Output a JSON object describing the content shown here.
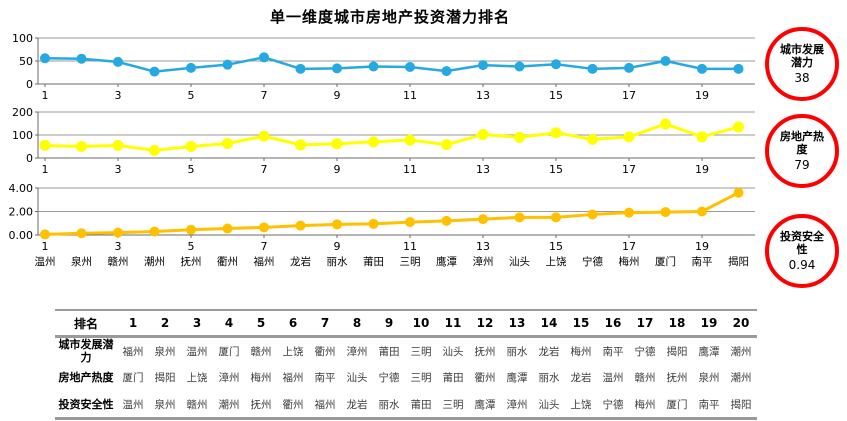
{
  "title": "单一维度城市房地产投资潜力排名",
  "colors": {
    "blue_series": "#25A9E0",
    "yellow_series": "#FFFF00",
    "orange_series": "#FFC000",
    "badge_ring": "#FF0000",
    "gridline": "#9a9a9a",
    "axis": "#6b6b6b"
  },
  "chart_data": [
    {
      "type": "line",
      "name": "城市发展潜力",
      "color": "#25A9E0",
      "categories": [
        1,
        2,
        3,
        4,
        5,
        6,
        7,
        8,
        9,
        10,
        11,
        12,
        13,
        14,
        15,
        16,
        17,
        18,
        19,
        20
      ],
      "x_tick_labels": [
        "1",
        "3",
        "5",
        "7",
        "9",
        "11",
        "13",
        "15",
        "17",
        "19"
      ],
      "values": [
        56,
        55,
        48,
        27,
        35,
        42,
        58,
        33,
        34,
        38,
        37,
        28,
        41,
        38,
        43,
        33,
        35,
        50,
        33,
        33
      ],
      "ylim": [
        0,
        100
      ],
      "yticks": [
        0,
        50,
        100
      ],
      "ytick_labels": [
        "0",
        "50",
        "100"
      ],
      "grid": true,
      "legend": "none"
    },
    {
      "type": "line",
      "name": "房地产热度",
      "color": "#FFFF00",
      "categories": [
        1,
        2,
        3,
        4,
        5,
        6,
        7,
        8,
        9,
        10,
        11,
        12,
        13,
        14,
        15,
        16,
        17,
        18,
        19,
        20
      ],
      "x_tick_labels": [
        "1",
        "3",
        "5",
        "7",
        "9",
        "11",
        "13",
        "15",
        "17",
        "19"
      ],
      "values": [
        55,
        50,
        55,
        33,
        50,
        63,
        95,
        57,
        62,
        70,
        78,
        58,
        102,
        90,
        110,
        81,
        92,
        148,
        92,
        135
      ],
      "ylim": [
        0,
        200
      ],
      "yticks": [
        0,
        100,
        200
      ],
      "ytick_labels": [
        "0",
        "100",
        "200"
      ],
      "grid": true,
      "legend": "none"
    },
    {
      "type": "line",
      "name": "投资安全性",
      "color": "#FFC000",
      "categories": [
        1,
        2,
        3,
        4,
        5,
        6,
        7,
        8,
        9,
        10,
        11,
        12,
        13,
        14,
        15,
        16,
        17,
        18,
        19,
        20
      ],
      "x_tick_labels": [
        "1",
        "3",
        "5",
        "7",
        "9",
        "11",
        "13",
        "15",
        "17",
        "19"
      ],
      "city_labels": [
        "温州",
        "泉州",
        "赣州",
        "潮州",
        "抚州",
        "衢州",
        "福州",
        "龙岩",
        "丽水",
        "莆田",
        "三明",
        "鹰潭",
        "漳州",
        "汕头",
        "上饶",
        "宁德",
        "梅州",
        "厦门",
        "南平",
        "揭阳"
      ],
      "values": [
        0.05,
        0.15,
        0.2,
        0.3,
        0.45,
        0.55,
        0.65,
        0.8,
        0.9,
        0.95,
        1.1,
        1.2,
        1.35,
        1.5,
        1.5,
        1.75,
        1.9,
        1.95,
        2.0,
        3.6
      ],
      "ylim": [
        0,
        4
      ],
      "yticks": [
        0,
        2,
        4
      ],
      "ytick_labels": [
        "0.00",
        "2.00",
        "4.00"
      ],
      "grid": true,
      "legend": "none"
    }
  ],
  "badges": [
    {
      "label": "城市发展潜力",
      "value": "38"
    },
    {
      "label": "房地产热度",
      "value": "79"
    },
    {
      "label": "投资安全性",
      "value": "0.94"
    }
  ],
  "table": {
    "header": [
      "排名",
      "1",
      "2",
      "3",
      "4",
      "5",
      "6",
      "7",
      "8",
      "9",
      "10",
      "11",
      "12",
      "13",
      "14",
      "15",
      "16",
      "17",
      "18",
      "19",
      "20"
    ],
    "rows": [
      {
        "label": "城市发展潜力",
        "cells": [
          "福州",
          "泉州",
          "温州",
          "厦门",
          "赣州",
          "上饶",
          "衢州",
          "漳州",
          "莆田",
          "三明",
          "汕头",
          "抚州",
          "丽水",
          "龙岩",
          "梅州",
          "南平",
          "宁德",
          "揭阳",
          "鹰潭",
          "潮州"
        ]
      },
      {
        "label": "房地产热度",
        "cells": [
          "厦门",
          "揭阳",
          "上饶",
          "漳州",
          "梅州",
          "福州",
          "南平",
          "汕头",
          "宁德",
          "三明",
          "莆田",
          "衢州",
          "鹰潭",
          "丽水",
          "龙岩",
          "温州",
          "赣州",
          "抚州",
          "泉州",
          "潮州"
        ]
      },
      {
        "label": "投资安全性",
        "cells": [
          "温州",
          "泉州",
          "赣州",
          "潮州",
          "抚州",
          "衢州",
          "福州",
          "龙岩",
          "丽水",
          "莆田",
          "三明",
          "鹰潭",
          "漳州",
          "汕头",
          "上饶",
          "宁德",
          "梅州",
          "厦门",
          "南平",
          "揭阳"
        ]
      }
    ]
  }
}
